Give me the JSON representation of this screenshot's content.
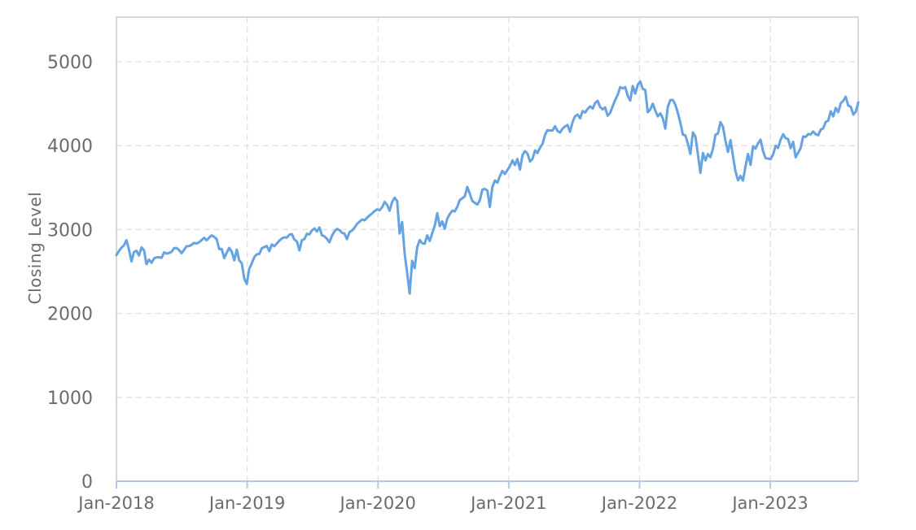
{
  "chart_data": {
    "type": "line",
    "title": "",
    "xlabel": "",
    "ylabel": "Closing Level",
    "legend": "none",
    "grid": "dashed",
    "background_color": "#ffffff",
    "line_color": "#66a3e2",
    "grid_color": "#e0e0e0",
    "border_color": "#cccccc",
    "axis_line_color": "#b4c8e6",
    "text_color": "#6b6b6b",
    "ylim": [
      0,
      5533
    ],
    "xlim": [
      2018.0,
      2023.672
    ],
    "y_ticks": [
      0,
      1000,
      2000,
      3000,
      4000,
      5000
    ],
    "x_ticks": [
      {
        "label": "Jan-2018",
        "year": 2018
      },
      {
        "label": "Jan-2019",
        "year": 2019
      },
      {
        "label": "Jan-2020",
        "year": 2020
      },
      {
        "label": "Jan-2021",
        "year": 2021
      },
      {
        "label": "Jan-2022",
        "year": 2022
      },
      {
        "label": "Jan-2023",
        "year": 2023
      }
    ],
    "series": [
      {
        "name": "Closing Level",
        "x_start": 2018.0,
        "x_step": 0.0191651,
        "values": [
          2696,
          2743,
          2786,
          2810,
          2873,
          2762,
          2620,
          2732,
          2747,
          2691,
          2787,
          2752,
          2588,
          2641,
          2604,
          2656,
          2670,
          2670,
          2663,
          2728,
          2713,
          2721,
          2735,
          2779,
          2780,
          2755,
          2718,
          2760,
          2801,
          2802,
          2819,
          2840,
          2833,
          2850,
          2875,
          2902,
          2872,
          2905,
          2930,
          2914,
          2886,
          2767,
          2768,
          2659,
          2723,
          2781,
          2736,
          2633,
          2760,
          2633,
          2600,
          2417,
          2351,
          2532,
          2596,
          2671,
          2705,
          2708,
          2776,
          2793,
          2803,
          2743,
          2822,
          2801,
          2834,
          2867,
          2893,
          2907,
          2905,
          2939,
          2946,
          2881,
          2860,
          2752,
          2873,
          2887,
          2950,
          2942,
          2990,
          3014,
          2977,
          3026,
          2932,
          2919,
          2889,
          2847,
          2926,
          2979,
          3008,
          2992,
          2962,
          2952,
          2886,
          2970,
          2986,
          3023,
          3067,
          3093,
          3120,
          3110,
          3141,
          3169,
          3192,
          3221,
          3240,
          3231,
          3265,
          3330,
          3296,
          3225,
          3328,
          3380,
          3338,
          2954,
          3090,
          2711,
          2481,
          2237,
          2627,
          2541,
          2790,
          2875,
          2837,
          2830,
          2930,
          2864,
          2955,
          3044,
          3194,
          3041,
          3098,
          3009,
          3130,
          3185,
          3225,
          3216,
          3271,
          3351,
          3373,
          3397,
          3508,
          3427,
          3341,
          3319,
          3298,
          3348,
          3477,
          3484,
          3465,
          3270,
          3509,
          3585,
          3558,
          3638,
          3699,
          3663,
          3709,
          3756,
          3825,
          3768,
          3841,
          3714,
          3887,
          3935,
          3907,
          3811,
          3842,
          3943,
          3913,
          3975,
          4020,
          4129,
          4185,
          4180,
          4181,
          4233,
          4174,
          4156,
          4204,
          4230,
          4247,
          4166,
          4281,
          4352,
          4370,
          4327,
          4412,
          4395,
          4437,
          4468,
          4442,
          4509,
          4535,
          4459,
          4433,
          4455,
          4357,
          4391,
          4471,
          4545,
          4605,
          4698,
          4683,
          4698,
          4594,
          4538,
          4712,
          4621,
          4726,
          4766,
          4677,
          4663,
          4398,
          4432,
          4501,
          4419,
          4349,
          4385,
          4329,
          4204,
          4463,
          4543,
          4546,
          4488,
          4392,
          4272,
          4131,
          4123,
          4024,
          3901,
          4158,
          4109,
          3901,
          3675,
          3912,
          3825,
          3899,
          3863,
          3962,
          4130,
          4145,
          4280,
          4228,
          4057,
          3924,
          4067,
          3873,
          3693,
          3586,
          3640,
          3583,
          3753,
          3901,
          3771,
          3993,
          3965,
          4026,
          4071,
          3934,
          3852,
          3845,
          3839,
          3895,
          3999,
          3973,
          4071,
          4136,
          4090,
          4079,
          3970,
          4046,
          3862,
          3917,
          3971,
          4109,
          4105,
          4138,
          4134,
          4169,
          4136,
          4124,
          4192,
          4205,
          4282,
          4299,
          4410,
          4348,
          4450,
          4399,
          4505,
          4536,
          4582,
          4478,
          4464,
          4370,
          4406,
          4516
        ]
      }
    ]
  }
}
